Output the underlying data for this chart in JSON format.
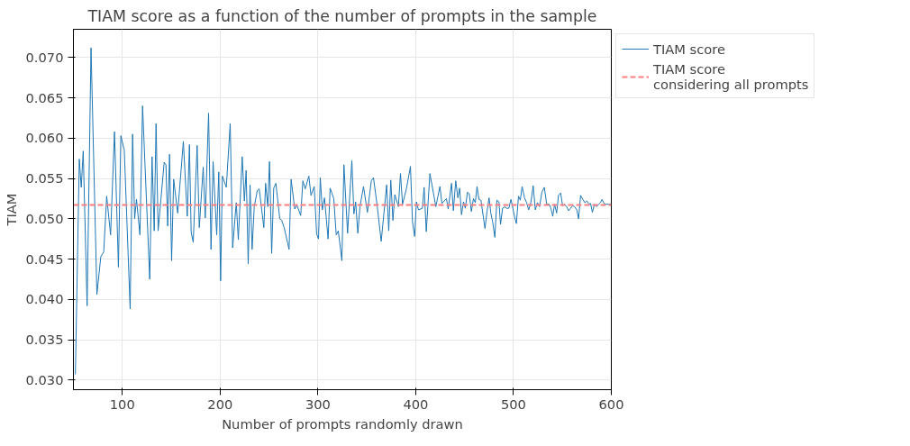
{
  "chart_data": {
    "type": "line",
    "title": "TIAM score as a function of the number of prompts in the sample",
    "xlabel": "Number of prompts randomly drawn",
    "ylabel": "TIAM",
    "x": [
      52,
      56,
      58,
      60,
      64,
      68,
      74,
      78,
      81,
      84,
      88,
      92,
      96,
      98.5,
      102,
      108,
      110.5,
      112.6,
      114.5,
      118,
      120.7,
      128,
      130.4,
      132.6,
      134.5,
      136.6,
      142.8,
      144.6,
      146.4,
      148.3,
      150.4,
      152.5,
      156.6,
      162.4,
      166.4,
      168.6,
      170.4,
      172.5,
      176.5,
      178.7,
      182.7,
      184.8,
      188.2,
      190.7,
      192.8,
      196.5,
      198.6,
      200.5,
      202.3,
      206.3,
      210.3,
      212.8,
      216.5,
      218.6,
      222.6,
      224.8,
      226.6,
      228.7,
      230.6,
      232.7,
      234.9,
      238,
      240,
      244.7,
      246.5,
      248.7,
      250.5,
      252.7,
      254.8,
      257,
      261,
      263,
      265.5,
      270.5,
      272.6,
      276.3,
      278.5,
      282.4,
      284.6,
      287,
      290.7,
      292.9,
      296.2,
      298.7,
      300.6,
      302.4,
      304.5,
      306.7,
      310.4,
      312.5,
      316.2,
      318.7,
      320.8,
      324.5,
      326.6,
      330.3,
      334.7,
      336.8,
      338.6,
      340.8,
      343,
      346.6,
      350.6,
      354.6,
      356.8,
      360.7,
      364.7,
      370.3,
      372.4,
      374.5,
      376.7,
      378.6,
      382.3,
      384.4,
      386.5,
      390.6,
      394.6,
      396.7,
      398.9,
      400.7,
      402.8,
      406.8,
      408.6,
      410.8,
      414.5,
      420.6,
      424.7,
      426.8,
      431.4,
      433.2,
      436.6,
      438.5,
      440.9,
      443.1,
      444.9,
      446.8,
      448.9,
      450.7,
      452.9,
      454.7,
      456.9,
      459,
      460.9,
      462.7,
      464.6,
      466.7,
      470.8,
      472.9,
      475,
      476.8,
      478.7,
      480.9,
      483,
      485.1,
      486.7,
      488.8,
      491.3,
      492.8,
      495.2,
      497.4,
      498.8,
      501,
      502.9,
      505.1,
      506.9,
      508.8,
      511.2,
      513.4,
      515.5,
      517.7,
      520.1,
      522.3,
      524.4,
      526.6,
      529,
      531.5,
      533.9,
      536.4,
      538.3,
      540.1,
      542,
      544.1,
      546,
      548.2,
      550.2,
      552.1,
      554.2,
      556.4,
      558.3,
      560.4,
      562.5,
      564.7,
      566.5,
      568.6,
      570.8,
      573,
      575.1,
      577.2,
      578.8,
      580.6,
      582.8,
      585,
      587.1,
      588.9,
      590.5,
      592.6,
      594.7,
      597.2,
      600
    ],
    "series": [
      {
        "name": "TIAM score",
        "color": "#1f77b4",
        "values": [
          0.0307,
          0.0574,
          0.0539,
          0.0584,
          0.0392,
          0.0712,
          0.0406,
          0.0453,
          0.0459,
          0.0528,
          0.048,
          0.0608,
          0.044,
          0.0603,
          0.0585,
          0.0388,
          0.0605,
          0.05,
          0.0524,
          0.048,
          0.064,
          0.0425,
          0.0577,
          0.0485,
          0.0618,
          0.0485,
          0.057,
          0.0567,
          0.0491,
          0.058,
          0.0448,
          0.0549,
          0.0507,
          0.0596,
          0.0503,
          0.0592,
          0.0483,
          0.0471,
          0.0591,
          0.0489,
          0.0564,
          0.0501,
          0.0631,
          0.0462,
          0.0571,
          0.048,
          0.0558,
          0.0423,
          0.0553,
          0.0539,
          0.0618,
          0.0464,
          0.052,
          0.0474,
          0.0577,
          0.0522,
          0.056,
          0.0444,
          0.0542,
          0.0462,
          0.0515,
          0.0535,
          0.0537,
          0.0489,
          0.0544,
          0.0515,
          0.0571,
          0.0457,
          0.0538,
          0.0544,
          0.05,
          0.0498,
          0.0489,
          0.0462,
          0.0549,
          0.0512,
          0.0517,
          0.0504,
          0.0547,
          0.0537,
          0.0553,
          0.0529,
          0.054,
          0.0481,
          0.0475,
          0.0551,
          0.0511,
          0.0526,
          0.0475,
          0.0538,
          0.0525,
          0.048,
          0.0485,
          0.0448,
          0.0567,
          0.0482,
          0.0572,
          0.0506,
          0.0521,
          0.0482,
          0.0515,
          0.054,
          0.0508,
          0.0547,
          0.0551,
          0.0515,
          0.0472,
          0.0542,
          0.0485,
          0.0548,
          0.0498,
          0.053,
          0.0515,
          0.0556,
          0.0518,
          0.0538,
          0.0565,
          0.0496,
          0.0478,
          0.0521,
          0.0511,
          0.0513,
          0.0539,
          0.0484,
          0.0556,
          0.0515,
          0.054,
          0.0519,
          0.0525,
          0.0512,
          0.0544,
          0.051,
          0.0547,
          0.0526,
          0.0538,
          0.0505,
          0.0521,
          0.0513,
          0.0533,
          0.0531,
          0.0509,
          0.0525,
          0.052,
          0.054,
          0.0524,
          0.0523,
          0.0488,
          0.0509,
          0.0526,
          0.0507,
          0.0496,
          0.0477,
          0.0523,
          0.0521,
          0.0493,
          0.0513,
          0.0515,
          0.0513,
          0.0513,
          0.0524,
          0.0516,
          0.0503,
          0.0494,
          0.0528,
          0.0523,
          0.054,
          0.0526,
          0.052,
          0.0511,
          0.052,
          0.0541,
          0.0511,
          0.052,
          0.0515,
          0.0533,
          0.0539,
          0.0518,
          0.0518,
          0.0513,
          0.0503,
          0.0518,
          0.0507,
          0.0529,
          0.0532,
          0.0516,
          0.0518,
          0.0515,
          0.051,
          0.0513,
          0.0516,
          0.0515,
          0.0511,
          0.05,
          0.0529,
          0.0524,
          0.052,
          0.0522,
          0.0518,
          0.0519,
          0.0508,
          0.0518,
          0.0515,
          0.0518,
          0.052,
          0.0524,
          0.0519,
          0.0518,
          0.0518,
          0.0518
        ]
      }
    ],
    "ref_lines": [
      {
        "axis": "y",
        "value": 0.0517,
        "label": "TIAM score\nconsidering all prompts",
        "color": "#ff7f7f",
        "line_style": "dashed"
      }
    ],
    "xlim": [
      50,
      600
    ],
    "ylim": [
      0.0288,
      0.0735
    ],
    "xticks": [
      100,
      200,
      300,
      400,
      500,
      600
    ],
    "yticks": [
      {
        "value": 0.03,
        "label": "0.030"
      },
      {
        "value": 0.035,
        "label": "0.035"
      },
      {
        "value": 0.04,
        "label": "0.040"
      },
      {
        "value": 0.045,
        "label": "0.045"
      },
      {
        "value": 0.05,
        "label": "0.050"
      },
      {
        "value": 0.055,
        "label": "0.055"
      },
      {
        "value": 0.06,
        "label": "0.060"
      },
      {
        "value": 0.065,
        "label": "0.065"
      },
      {
        "value": 0.07,
        "label": "0.070"
      }
    ],
    "grid": true,
    "legend": "top right",
    "line_style": "solid",
    "marker": "none"
  }
}
